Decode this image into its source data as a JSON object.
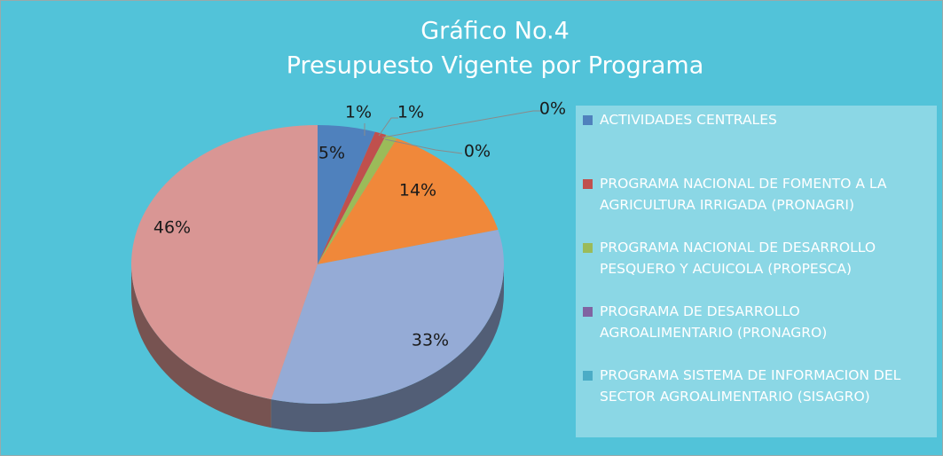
{
  "chart_data": {
    "type": "pie",
    "title": "Gráfico No.4",
    "subtitle": "Presupuesto Vigente por Programa",
    "categories": [
      "ACTIVIDADES CENTRALES",
      "PROGRAMA NACIONAL DE FOMENTO A LA AGRICULTURA IRRIGADA (PRONAGRI)",
      "PROGRAMA NACIONAL DE DESARROLLO PESQUERO Y ACUICOLA (PROPESCA)",
      "PROGRAMA DE DESARROLLO AGROALIMENTARIO (PRONAGRO)",
      "PROGRAMA  SISTEMA DE INFORMACION DEL SECTOR AGROALIMENTARIO (SISAGRO)",
      null,
      null,
      null
    ],
    "values": [
      5,
      1,
      1,
      0,
      0,
      14,
      33,
      46
    ],
    "value_labels": [
      "5%",
      "1%",
      "1%",
      "0%",
      "0%",
      "14%",
      "33%",
      "46%"
    ],
    "colors": [
      "#4f81bd",
      "#c0504d",
      "#9bbb59",
      "#8064a2",
      "#4bacc6",
      "#f0883a",
      "#95abd6",
      "#d99694"
    ],
    "legend": "right"
  }
}
